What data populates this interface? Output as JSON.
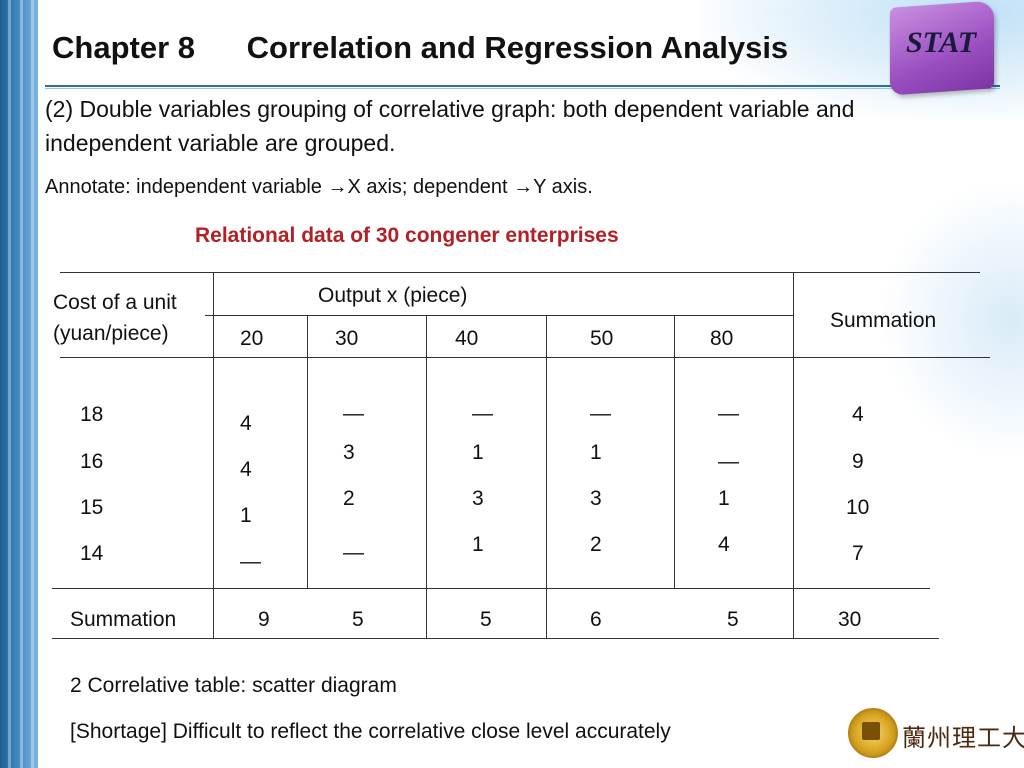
{
  "header": {
    "chapter": "Chapter 8",
    "title": "Correlation and Regression Analysis",
    "badge": "STAT"
  },
  "body": {
    "intro": "(2) Double variables grouping of correlative graph:  both dependent variable and independent variable are grouped.",
    "annotate": "Annotate: independent variable →X axis; dependent →Y axis.",
    "caption": "Relational data of  30 congener enterprises"
  },
  "table": {
    "row_header_line1": "Cost of a unit",
    "row_header_line2": "(yuan/piece)",
    "output_header": "Output x (piece)",
    "summation_header": "Summation",
    "x_values": [
      "20",
      "30",
      "40",
      "50",
      "80"
    ],
    "cost_values": [
      "18",
      "16",
      "15",
      "14"
    ],
    "cells": [
      [
        "4",
        "—",
        "—",
        "—",
        "—"
      ],
      [
        "4",
        "3",
        "1",
        "1",
        "—"
      ],
      [
        "1",
        "2",
        "3",
        "3",
        "1"
      ],
      [
        "—",
        "—",
        "1",
        "2",
        "4"
      ]
    ],
    "row_totals": [
      "4",
      "9",
      "10",
      "7"
    ],
    "summation_label": "Summation",
    "column_totals": [
      "9",
      "5",
      "5",
      "6",
      "5"
    ],
    "grand_total": "30"
  },
  "footer": {
    "scatter": "2 Correlative table:  scatter diagram",
    "shortage": "[Shortage] Difficult to reflect the correlative close level accurately",
    "university": "蘭州理工大學"
  },
  "colors": {
    "caption": "#b41f24",
    "badge": "#9a4fc0",
    "sideband": "#2f6da3"
  }
}
